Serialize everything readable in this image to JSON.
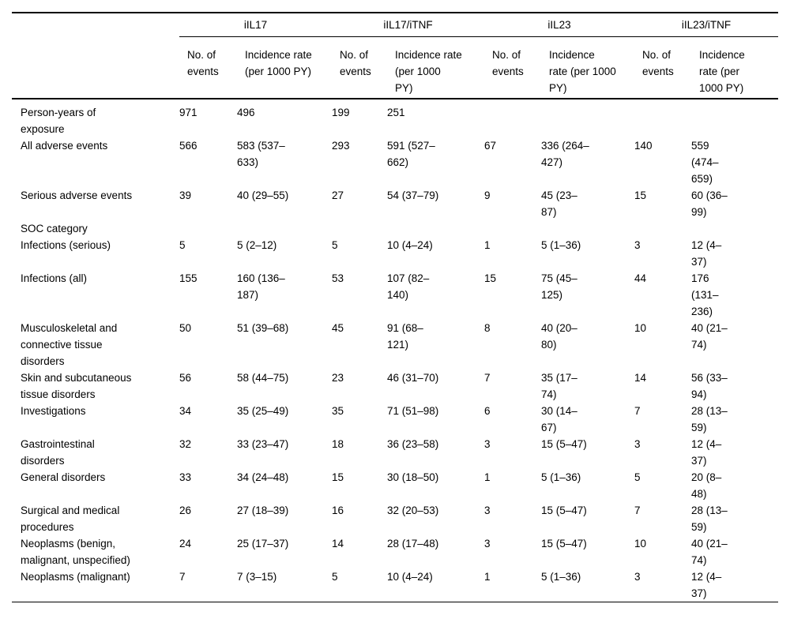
{
  "table": {
    "groups": [
      {
        "label": "iIL17"
      },
      {
        "label": "iIL17/iTNF"
      },
      {
        "label": "iIL23"
      },
      {
        "label": "iIL23/iTNF"
      }
    ],
    "col_headers": [
      "No. of\nevents",
      "Incidence rate\n(per 1000 PY)",
      "No. of\nevents",
      "Incidence rate\n(per 1000\nPY)",
      "No. of\nevents",
      "Incidence\nrate (per 1000\nPY)",
      "No. of\nevents",
      "Incidence\nrate (per\n1000 PY)"
    ],
    "rows": [
      {
        "label": "Person-years of\nexposure",
        "cells": [
          "971",
          "496",
          "199",
          "251",
          "",
          "",
          "",
          ""
        ]
      },
      {
        "label": "All adverse events",
        "cells": [
          "566",
          "583 (537–\n633)",
          "293",
          "591 (527–\n662)",
          "67",
          "336 (264–\n427)",
          "140",
          "559\n(474–\n659)"
        ]
      },
      {
        "label": "Serious adverse events",
        "cells": [
          "39",
          "40 (29–55)",
          "27",
          "54 (37–79)",
          "9",
          "45 (23–\n87)",
          "15",
          "60 (36–\n99)"
        ]
      },
      {
        "label": "SOC category",
        "section": true,
        "cells": []
      },
      {
        "label": "Infections (serious)",
        "cells": [
          "5",
          "5 (2–12)",
          "5",
          "10 (4–24)",
          "1",
          "5 (1–36)",
          "3",
          "12 (4–\n37)"
        ]
      },
      {
        "label": "Infections (all)",
        "cells": [
          "155",
          "160 (136–\n187)",
          "53",
          "107 (82–\n140)",
          "15",
          "75 (45–\n125)",
          "44",
          "176\n(131–\n236)"
        ]
      },
      {
        "label": "Musculoskeletal and\nconnective tissue\ndisorders",
        "cells": [
          "50",
          "51 (39–68)",
          "45",
          "91 (68–\n121)",
          "8",
          "40 (20–\n80)",
          "10",
          "40 (21–\n74)"
        ]
      },
      {
        "label": "Skin and subcutaneous\ntissue disorders",
        "cells": [
          "56",
          "58 (44–75)",
          "23",
          "46 (31–70)",
          "7",
          "35 (17–\n74)",
          "14",
          "56 (33–\n94)"
        ]
      },
      {
        "label": "Investigations",
        "cells": [
          "34",
          "35 (25–49)",
          "35",
          "71 (51–98)",
          "6",
          "30 (14–\n67)",
          "7",
          "28 (13–\n59)"
        ]
      },
      {
        "label": "Gastrointestinal\ndisorders",
        "cells": [
          "32",
          "33 (23–47)",
          "18",
          "36 (23–58)",
          "3",
          "15 (5–47)",
          "3",
          "12 (4–\n37)"
        ]
      },
      {
        "label": "General disorders",
        "cells": [
          "33",
          "34 (24–48)",
          "15",
          "30 (18–50)",
          "1",
          "5 (1–36)",
          "5",
          "20 (8–\n48)"
        ]
      },
      {
        "label": "Surgical and medical\nprocedures",
        "cells": [
          "26",
          "27 (18–39)",
          "16",
          "32 (20–53)",
          "3",
          "15 (5–47)",
          "7",
          "28 (13–\n59)"
        ]
      },
      {
        "label": "Neoplasms (benign,\nmalignant, unspecified)",
        "cells": [
          "24",
          "25 (17–37)",
          "14",
          "28 (17–48)",
          "3",
          "15 (5–47)",
          "10",
          "40 (21–\n74)"
        ]
      },
      {
        "label": "Neoplasms (malignant)",
        "cells": [
          "7",
          "7 (3–15)",
          "5",
          "10 (4–24)",
          "1",
          "5 (1–36)",
          "3",
          "12 (4–\n37)"
        ]
      }
    ]
  }
}
